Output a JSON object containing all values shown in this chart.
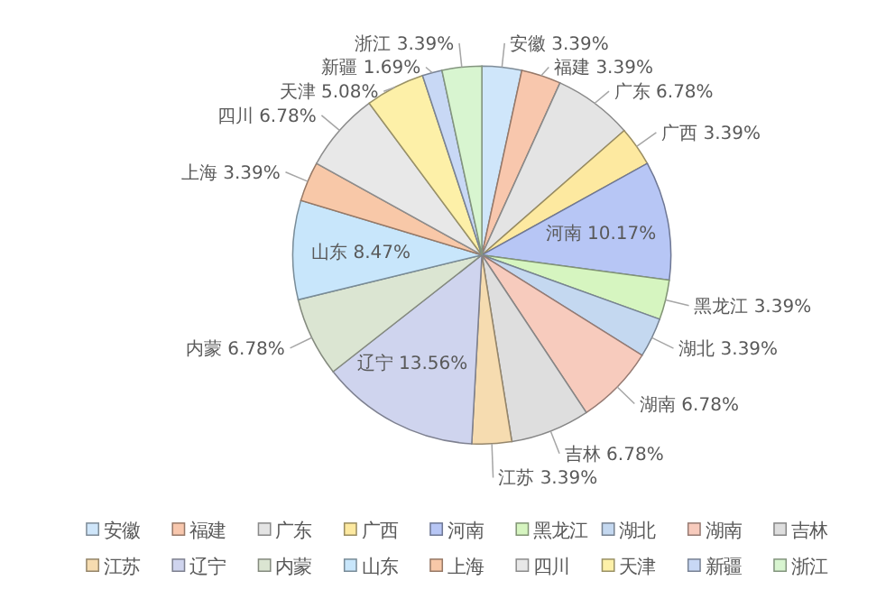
{
  "chart_data": {
    "type": "pie",
    "categories": [
      "安徽",
      "福建",
      "广东",
      "广西",
      "河南",
      "黑龙江",
      "湖北",
      "湖南",
      "吉林",
      "江苏",
      "辽宁",
      "内蒙",
      "山东",
      "上海",
      "四川",
      "天津",
      "新疆",
      "浙江"
    ],
    "values": [
      3.39,
      3.39,
      6.78,
      3.39,
      10.17,
      3.39,
      3.39,
      6.78,
      6.78,
      3.39,
      13.56,
      6.78,
      8.47,
      3.39,
      6.78,
      5.08,
      1.69,
      3.39
    ],
    "colors": [
      "#cfe6fa",
      "#f8c7ad",
      "#e4e4e4",
      "#fde9a0",
      "#b7c6f5",
      "#d6f5c0",
      "#c4d8f0",
      "#f7cbbd",
      "#dedede",
      "#f6dcb0",
      "#cfd4ee",
      "#dbe5d2",
      "#c8e6fb",
      "#f8c8a8",
      "#e8e8e8",
      "#fdf0a8",
      "#c8d8f5",
      "#d8f5d0"
    ],
    "value_labels": [
      "3.39%",
      "3.39%",
      "6.78%",
      "3.39%",
      "10.17%",
      "3.39%",
      "3.39%",
      "6.78%",
      "6.78%",
      "3.39%",
      "13.56%",
      "6.78%",
      "8.47%",
      "3.39%",
      "6.78%",
      "5.08%",
      "1.69%",
      "3.39%"
    ],
    "legend": "bottom"
  }
}
